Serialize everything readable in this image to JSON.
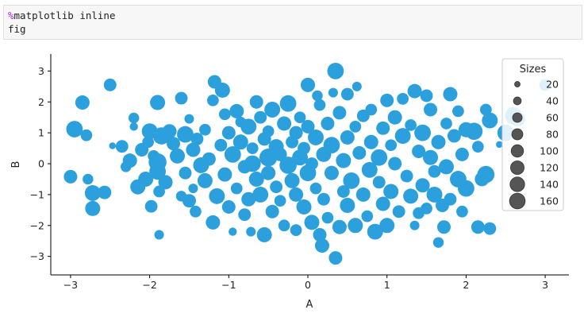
{
  "code_cell": {
    "line1_prefix": "%",
    "line1_rest": "matplotlib inline",
    "line2": "fig"
  },
  "chart_data": {
    "type": "scatter",
    "title": "",
    "xlabel": "A",
    "ylabel": "B",
    "xlim": [
      -3.25,
      3.3
    ],
    "ylim": [
      -3.6,
      3.55
    ],
    "xticks": [
      -3,
      -2,
      -1,
      0,
      1,
      2,
      3
    ],
    "yticks": [
      -3,
      -2,
      -1,
      0,
      1,
      2,
      3
    ],
    "grid": false,
    "marker_color": "#2ca0dc",
    "legend": {
      "title": "Sizes",
      "placement": "top-right",
      "marker_color": "#555555",
      "entries": [
        "20",
        "40",
        "60",
        "80",
        "100",
        "120",
        "140",
        "160"
      ]
    },
    "points": [
      [
        -3.0,
        -0.42,
        80
      ],
      [
        -2.85,
        1.98,
        90
      ],
      [
        -2.8,
        0.92,
        60
      ],
      [
        -2.95,
        1.12,
        120
      ],
      [
        -2.78,
        -0.5,
        50
      ],
      [
        -2.72,
        -0.95,
        110
      ],
      [
        -2.72,
        -1.45,
        100
      ],
      [
        -2.57,
        -0.93,
        80
      ],
      [
        -2.5,
        2.55,
        70
      ],
      [
        -2.47,
        0.58,
        20
      ],
      [
        -2.35,
        0.56,
        70
      ],
      [
        -2.3,
        -0.1,
        50
      ],
      [
        -2.25,
        0.1,
        90
      ],
      [
        -2.2,
        1.48,
        50
      ],
      [
        -2.2,
        1.2,
        30
      ],
      [
        -2.15,
        -0.75,
        100
      ],
      [
        -2.1,
        0.45,
        80
      ],
      [
        -2.05,
        -0.5,
        100
      ],
      [
        -2.02,
        0.7,
        60
      ],
      [
        -2.0,
        1.05,
        110
      ],
      [
        -1.98,
        -1.38,
        70
      ],
      [
        -1.95,
        0.25,
        60
      ],
      [
        -1.9,
        -0.25,
        120
      ],
      [
        -1.9,
        0.05,
        140
      ],
      [
        -1.9,
        1.98,
        100
      ],
      [
        -1.88,
        -0.9,
        60
      ],
      [
        -1.85,
        0.9,
        130
      ],
      [
        -1.88,
        -2.3,
        40
      ],
      [
        -1.8,
        -0.6,
        90
      ],
      [
        -1.75,
        1.05,
        90
      ],
      [
        -1.7,
        0.65,
        80
      ],
      [
        -1.65,
        0.25,
        100
      ],
      [
        -1.6,
        2.12,
        70
      ],
      [
        -1.6,
        -1.05,
        50
      ],
      [
        -1.55,
        0.95,
        120
      ],
      [
        -1.55,
        -0.3,
        70
      ],
      [
        -1.5,
        1.45,
        40
      ],
      [
        -1.5,
        -1.2,
        80
      ],
      [
        -1.45,
        0.45,
        90
      ],
      [
        -1.45,
        -0.8,
        40
      ],
      [
        -1.42,
        -1.55,
        60
      ],
      [
        -1.4,
        0.8,
        70
      ],
      [
        -1.35,
        -0.05,
        110
      ],
      [
        -1.3,
        1.1,
        60
      ],
      [
        -1.3,
        -0.55,
        100
      ],
      [
        -1.25,
        0.15,
        80
      ],
      [
        -1.2,
        2.05,
        60
      ],
      [
        -1.2,
        -1.9,
        90
      ],
      [
        -1.15,
        -1.05,
        110
      ],
      [
        -1.1,
        0.6,
        70
      ],
      [
        -1.08,
        2.38,
        100
      ],
      [
        -1.05,
        1.6,
        60
      ],
      [
        -1.05,
        -0.35,
        90
      ],
      [
        -1.0,
        1.0,
        80
      ],
      [
        -1.0,
        -1.4,
        80
      ],
      [
        -0.95,
        0.3,
        120
      ],
      [
        -0.95,
        -2.2,
        30
      ],
      [
        -0.9,
        1.7,
        90
      ],
      [
        -0.9,
        -0.8,
        60
      ],
      [
        -0.85,
        0.7,
        100
      ],
      [
        -0.85,
        1.35,
        50
      ],
      [
        -0.8,
        -1.65,
        70
      ],
      [
        -0.8,
        -0.1,
        80
      ],
      [
        -0.75,
        1.2,
        110
      ],
      [
        -0.75,
        -1.15,
        90
      ],
      [
        -0.72,
        -2.2,
        40
      ],
      [
        -1.18,
        2.65,
        80
      ],
      [
        -0.7,
        0.5,
        60
      ],
      [
        -0.7,
        0.0,
        120
      ],
      [
        -0.65,
        2.0,
        80
      ],
      [
        -0.65,
        -0.5,
        100
      ],
      [
        -0.6,
        1.5,
        70
      ],
      [
        -0.6,
        -1.0,
        110
      ],
      [
        -0.55,
        -2.3,
        100
      ],
      [
        -0.55,
        0.8,
        80
      ],
      [
        -0.5,
        0.2,
        140
      ],
      [
        -0.5,
        1.05,
        60
      ],
      [
        -0.5,
        -0.3,
        90
      ],
      [
        -0.45,
        -1.55,
        80
      ],
      [
        -0.45,
        1.75,
        110
      ],
      [
        -0.4,
        -0.75,
        70
      ],
      [
        -0.4,
        0.55,
        100
      ],
      [
        -0.35,
        -1.2,
        60
      ],
      [
        -0.35,
        0.3,
        80
      ],
      [
        -0.3,
        1.3,
        90
      ],
      [
        -0.3,
        -2.0,
        60
      ],
      [
        -0.25,
        -0.05,
        130
      ],
      [
        -0.25,
        1.95,
        120
      ],
      [
        -0.2,
        0.7,
        70
      ],
      [
        -0.2,
        -0.55,
        100
      ],
      [
        -0.15,
        1.0,
        80
      ],
      [
        -0.15,
        -1.0,
        90
      ],
      [
        -0.15,
        -2.15,
        60
      ],
      [
        -0.1,
        0.2,
        110
      ],
      [
        -0.1,
        1.5,
        60
      ],
      [
        -0.05,
        -1.4,
        100
      ],
      [
        -0.05,
        0.5,
        70
      ],
      [
        0.0,
        -0.3,
        120
      ],
      [
        0.0,
        1.2,
        80
      ],
      [
        0.0,
        2.55,
        90
      ],
      [
        0.05,
        -1.9,
        100
      ],
      [
        0.05,
        0.0,
        70
      ],
      [
        0.1,
        -0.8,
        60
      ],
      [
        0.1,
        0.85,
        110
      ],
      [
        0.12,
        2.2,
        50
      ],
      [
        0.15,
        -2.3,
        80
      ],
      [
        0.15,
        1.9,
        60
      ],
      [
        0.18,
        -2.65,
        90
      ],
      [
        0.2,
        0.3,
        100
      ],
      [
        0.2,
        -1.15,
        70
      ],
      [
        0.25,
        -1.75,
        60
      ],
      [
        0.25,
        1.3,
        80
      ],
      [
        0.3,
        0.6,
        120
      ],
      [
        0.3,
        -0.3,
        90
      ],
      [
        0.32,
        2.3,
        40
      ],
      [
        0.35,
        -3.05,
        80
      ],
      [
        0.35,
        3.0,
        120
      ],
      [
        0.4,
        -2.05,
        90
      ],
      [
        0.4,
        1.65,
        80
      ],
      [
        0.45,
        0.1,
        100
      ],
      [
        0.45,
        -0.9,
        70
      ],
      [
        0.5,
        2.25,
        70
      ],
      [
        0.5,
        0.85,
        90
      ],
      [
        0.5,
        -1.35,
        100
      ],
      [
        0.55,
        -0.55,
        120
      ],
      [
        0.6,
        -2.0,
        100
      ],
      [
        0.6,
        1.2,
        60
      ],
      [
        0.62,
        2.5,
        40
      ],
      [
        0.65,
        0.35,
        80
      ],
      [
        0.7,
        -1.0,
        90
      ],
      [
        0.7,
        1.55,
        70
      ],
      [
        0.75,
        -1.7,
        60
      ],
      [
        0.78,
        -0.2,
        110
      ],
      [
        0.8,
        0.7,
        90
      ],
      [
        0.8,
        1.75,
        60
      ],
      [
        0.85,
        -2.2,
        110
      ],
      [
        0.9,
        -0.6,
        70
      ],
      [
        0.9,
        0.2,
        120
      ],
      [
        0.95,
        1.15,
        80
      ],
      [
        0.95,
        -1.3,
        90
      ],
      [
        1.0,
        -2.0,
        100
      ],
      [
        1.0,
        2.05,
        80
      ],
      [
        1.05,
        0.6,
        60
      ],
      [
        1.05,
        -0.9,
        100
      ],
      [
        1.1,
        0.0,
        80
      ],
      [
        1.1,
        1.5,
        90
      ],
      [
        1.15,
        -1.55,
        70
      ],
      [
        1.2,
        2.1,
        60
      ],
      [
        1.2,
        0.9,
        110
      ],
      [
        1.25,
        -0.4,
        70
      ],
      [
        1.3,
        1.25,
        60
      ],
      [
        1.3,
        -1.05,
        100
      ],
      [
        1.35,
        -2.0,
        40
      ],
      [
        1.35,
        2.35,
        90
      ],
      [
        1.4,
        0.4,
        80
      ],
      [
        1.4,
        -1.6,
        60
      ],
      [
        1.45,
        1.0,
        120
      ],
      [
        1.45,
        -0.7,
        90
      ],
      [
        1.5,
        -1.45,
        60
      ],
      [
        1.5,
        2.2,
        70
      ],
      [
        1.55,
        0.2,
        100
      ],
      [
        1.55,
        1.75,
        80
      ],
      [
        1.6,
        -0.25,
        70
      ],
      [
        1.6,
        -1.0,
        110
      ],
      [
        1.65,
        0.7,
        90
      ],
      [
        1.7,
        -1.35,
        80
      ],
      [
        1.75,
        1.3,
        60
      ],
      [
        1.75,
        -0.1,
        100
      ],
      [
        1.8,
        -1.15,
        70
      ],
      [
        1.8,
        2.25,
        90
      ],
      [
        1.85,
        0.9,
        80
      ],
      [
        1.9,
        -0.5,
        120
      ],
      [
        1.9,
        1.7,
        60
      ],
      [
        1.95,
        0.3,
        80
      ],
      [
        1.95,
        -1.55,
        60
      ],
      [
        2.0,
        1.1,
        100
      ],
      [
        2.0,
        -0.8,
        120
      ],
      [
        1.65,
        -2.55,
        50
      ],
      [
        1.72,
        -2.05,
        80
      ],
      [
        2.1,
        1.05,
        130
      ],
      [
        2.15,
        0.55,
        60
      ],
      [
        2.15,
        -2.05,
        80
      ],
      [
        2.2,
        -0.5,
        90
      ],
      [
        2.25,
        1.75,
        60
      ],
      [
        2.25,
        -0.35,
        130
      ],
      [
        2.3,
        1.4,
        110
      ],
      [
        2.3,
        -2.1,
        70
      ],
      [
        2.42,
        0.62,
        20
      ],
      [
        2.5,
        1.0,
        120
      ],
      [
        2.6,
        1.55,
        130
      ],
      [
        2.65,
        1.45,
        100
      ],
      [
        3.0,
        2.55,
        60
      ]
    ]
  }
}
